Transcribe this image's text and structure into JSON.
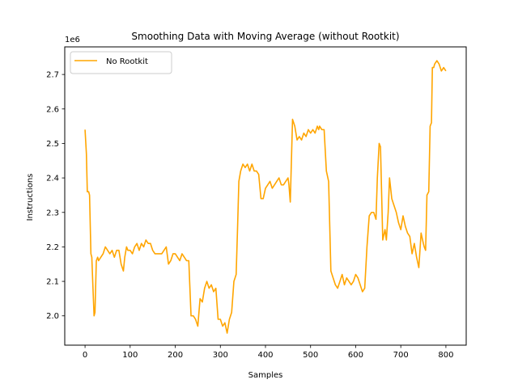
{
  "chart_data": {
    "type": "line",
    "title": "Smoothing Data with Moving Average (without Rootkit)",
    "xlabel": "Samples",
    "ylabel": "Instructions",
    "offset_label": "1e6",
    "xlim": [
      -45,
      845
    ],
    "ylim": [
      1.915,
      2.78
    ],
    "xticks": [
      0,
      100,
      200,
      300,
      400,
      500,
      600,
      700,
      800
    ],
    "yticks": [
      2.0,
      2.1,
      2.2,
      2.3,
      2.4,
      2.5,
      2.6,
      2.7
    ],
    "grid": false,
    "legend": {
      "placement": "top-left"
    },
    "series": [
      {
        "name": "No Rootkit",
        "color": "#ffa500",
        "x": [
          0,
          3,
          5,
          8,
          10,
          13,
          15,
          17,
          20,
          22,
          25,
          28,
          30,
          35,
          40,
          45,
          50,
          55,
          60,
          65,
          70,
          75,
          80,
          85,
          88,
          92,
          95,
          100,
          105,
          110,
          115,
          120,
          125,
          130,
          135,
          140,
          145,
          150,
          155,
          160,
          165,
          170,
          175,
          180,
          185,
          190,
          195,
          200,
          205,
          210,
          215,
          220,
          225,
          230,
          235,
          240,
          245,
          250,
          255,
          260,
          265,
          270,
          275,
          280,
          285,
          290,
          295,
          300,
          305,
          310,
          315,
          320,
          325,
          330,
          335,
          338,
          341,
          345,
          350,
          355,
          360,
          365,
          370,
          375,
          380,
          385,
          390,
          395,
          400,
          405,
          410,
          415,
          420,
          425,
          430,
          435,
          440,
          445,
          450,
          452,
          455,
          460,
          465,
          470,
          475,
          480,
          485,
          490,
          495,
          500,
          505,
          510,
          515,
          518,
          520,
          525,
          530,
          535,
          540,
          545,
          550,
          555,
          560,
          565,
          570,
          575,
          580,
          585,
          590,
          595,
          600,
          605,
          610,
          615,
          620,
          625,
          630,
          635,
          640,
          645,
          648,
          652,
          655,
          660,
          665,
          668,
          672,
          675,
          680,
          685,
          690,
          695,
          700,
          705,
          710,
          715,
          720,
          725,
          730,
          735,
          740,
          745,
          750,
          752,
          755,
          758,
          762,
          765,
          768,
          770,
          773,
          775,
          780,
          785,
          790,
          795,
          800
        ],
        "y": [
          2.54,
          2.47,
          2.36,
          2.36,
          2.35,
          2.18,
          2.17,
          2.1,
          2.0,
          2.01,
          2.16,
          2.17,
          2.16,
          2.17,
          2.18,
          2.2,
          2.19,
          2.18,
          2.19,
          2.17,
          2.19,
          2.19,
          2.15,
          2.13,
          2.17,
          2.2,
          2.19,
          2.19,
          2.18,
          2.2,
          2.21,
          2.19,
          2.21,
          2.2,
          2.22,
          2.21,
          2.21,
          2.19,
          2.18,
          2.18,
          2.18,
          2.18,
          2.19,
          2.2,
          2.15,
          2.16,
          2.18,
          2.18,
          2.17,
          2.16,
          2.18,
          2.17,
          2.16,
          2.16,
          2.0,
          2.0,
          1.99,
          1.97,
          2.05,
          2.04,
          2.08,
          2.1,
          2.08,
          2.09,
          2.07,
          2.08,
          1.99,
          1.99,
          1.97,
          1.98,
          1.95,
          1.99,
          2.01,
          2.1,
          2.12,
          2.25,
          2.39,
          2.42,
          2.44,
          2.43,
          2.44,
          2.42,
          2.44,
          2.42,
          2.42,
          2.41,
          2.34,
          2.34,
          2.37,
          2.38,
          2.39,
          2.37,
          2.38,
          2.39,
          2.4,
          2.38,
          2.38,
          2.39,
          2.4,
          2.38,
          2.33,
          2.57,
          2.55,
          2.51,
          2.52,
          2.51,
          2.53,
          2.52,
          2.54,
          2.53,
          2.54,
          2.53,
          2.55,
          2.54,
          2.55,
          2.54,
          2.54,
          2.42,
          2.39,
          2.13,
          2.11,
          2.09,
          2.08,
          2.1,
          2.12,
          2.09,
          2.11,
          2.1,
          2.09,
          2.1,
          2.12,
          2.11,
          2.09,
          2.07,
          2.08,
          2.2,
          2.29,
          2.3,
          2.3,
          2.28,
          2.4,
          2.5,
          2.49,
          2.22,
          2.25,
          2.22,
          2.3,
          2.4,
          2.34,
          2.32,
          2.3,
          2.27,
          2.25,
          2.29,
          2.26,
          2.24,
          2.23,
          2.18,
          2.21,
          2.17,
          2.14,
          2.24,
          2.21,
          2.2,
          2.19,
          2.35,
          2.36,
          2.55,
          2.56,
          2.72,
          2.72,
          2.73,
          2.74,
          2.73,
          2.71,
          2.72,
          2.71
        ]
      }
    ]
  }
}
